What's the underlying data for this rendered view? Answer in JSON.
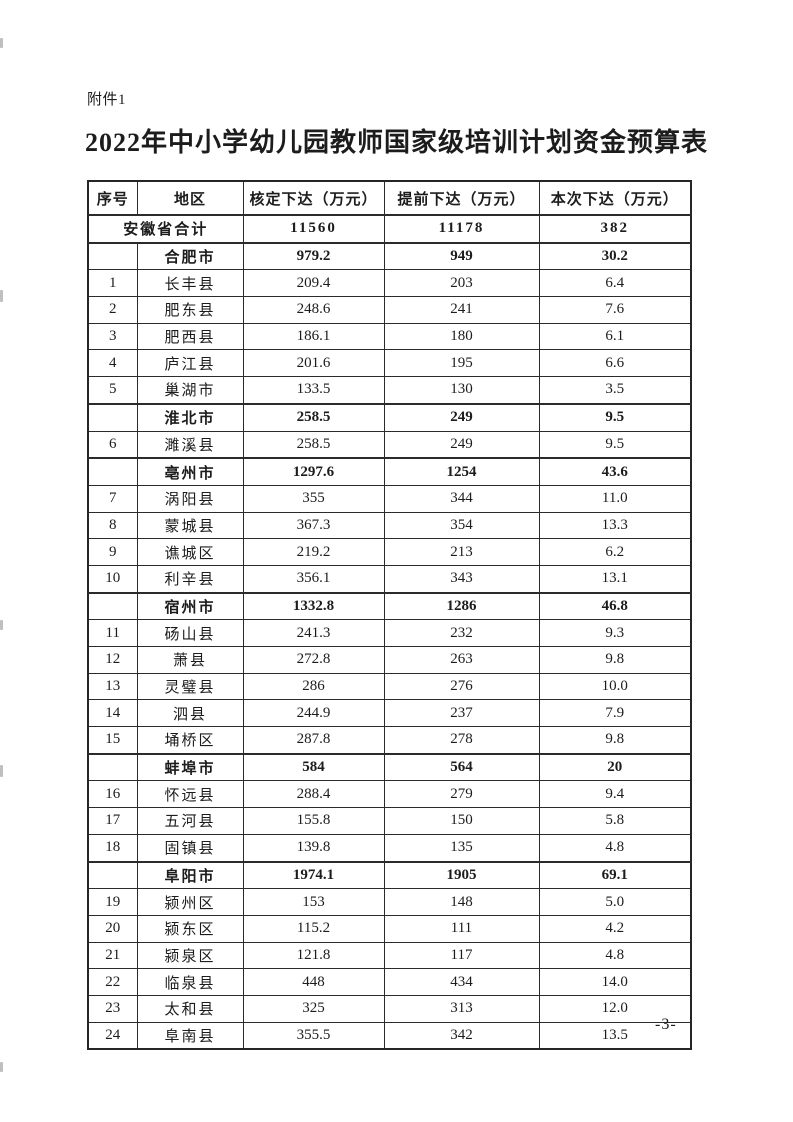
{
  "page": {
    "attachment_label": "附件1",
    "title": "2022年中小学幼儿园教师国家级培训计划资金预算表",
    "page_number": "-3-"
  },
  "table": {
    "headers": [
      "序号",
      "地区",
      "核定下达（万元）",
      "提前下达（万元）",
      "本次下达（万元）"
    ],
    "rows": [
      {
        "type": "province",
        "no": "",
        "region": "安徽省合计",
        "values": [
          "11560",
          "11178",
          "382"
        ]
      },
      {
        "type": "city",
        "no": "",
        "region": "合肥市",
        "values": [
          "979.2",
          "949",
          "30.2"
        ]
      },
      {
        "type": "county",
        "no": "1",
        "region": "长丰县",
        "values": [
          "209.4",
          "203",
          "6.4"
        ]
      },
      {
        "type": "county",
        "no": "2",
        "region": "肥东县",
        "values": [
          "248.6",
          "241",
          "7.6"
        ]
      },
      {
        "type": "county",
        "no": "3",
        "region": "肥西县",
        "values": [
          "186.1",
          "180",
          "6.1"
        ]
      },
      {
        "type": "county",
        "no": "4",
        "region": "庐江县",
        "values": [
          "201.6",
          "195",
          "6.6"
        ]
      },
      {
        "type": "county",
        "no": "5",
        "region": "巢湖市",
        "values": [
          "133.5",
          "130",
          "3.5"
        ]
      },
      {
        "type": "city",
        "no": "",
        "region": "淮北市",
        "values": [
          "258.5",
          "249",
          "9.5"
        ]
      },
      {
        "type": "county",
        "no": "6",
        "region": "濉溪县",
        "values": [
          "258.5",
          "249",
          "9.5"
        ]
      },
      {
        "type": "city",
        "no": "",
        "region": "亳州市",
        "values": [
          "1297.6",
          "1254",
          "43.6"
        ]
      },
      {
        "type": "county",
        "no": "7",
        "region": "涡阳县",
        "values": [
          "355",
          "344",
          "11.0"
        ]
      },
      {
        "type": "county",
        "no": "8",
        "region": "蒙城县",
        "values": [
          "367.3",
          "354",
          "13.3"
        ]
      },
      {
        "type": "county",
        "no": "9",
        "region": "谯城区",
        "values": [
          "219.2",
          "213",
          "6.2"
        ]
      },
      {
        "type": "county",
        "no": "10",
        "region": "利辛县",
        "values": [
          "356.1",
          "343",
          "13.1"
        ]
      },
      {
        "type": "city",
        "no": "",
        "region": "宿州市",
        "values": [
          "1332.8",
          "1286",
          "46.8"
        ]
      },
      {
        "type": "county",
        "no": "11",
        "region": "砀山县",
        "values": [
          "241.3",
          "232",
          "9.3"
        ]
      },
      {
        "type": "county",
        "no": "12",
        "region": "萧县",
        "values": [
          "272.8",
          "263",
          "9.8"
        ]
      },
      {
        "type": "county",
        "no": "13",
        "region": "灵璧县",
        "values": [
          "286",
          "276",
          "10.0"
        ]
      },
      {
        "type": "county",
        "no": "14",
        "region": "泗县",
        "values": [
          "244.9",
          "237",
          "7.9"
        ]
      },
      {
        "type": "county",
        "no": "15",
        "region": "埇桥区",
        "values": [
          "287.8",
          "278",
          "9.8"
        ]
      },
      {
        "type": "city",
        "no": "",
        "region": "蚌埠市",
        "values": [
          "584",
          "564",
          "20"
        ]
      },
      {
        "type": "county",
        "no": "16",
        "region": "怀远县",
        "values": [
          "288.4",
          "279",
          "9.4"
        ]
      },
      {
        "type": "county",
        "no": "17",
        "region": "五河县",
        "values": [
          "155.8",
          "150",
          "5.8"
        ]
      },
      {
        "type": "county",
        "no": "18",
        "region": "固镇县",
        "values": [
          "139.8",
          "135",
          "4.8"
        ]
      },
      {
        "type": "city",
        "no": "",
        "region": "阜阳市",
        "values": [
          "1974.1",
          "1905",
          "69.1"
        ]
      },
      {
        "type": "county",
        "no": "19",
        "region": "颍州区",
        "values": [
          "153",
          "148",
          "5.0"
        ]
      },
      {
        "type": "county",
        "no": "20",
        "region": "颍东区",
        "values": [
          "115.2",
          "111",
          "4.2"
        ]
      },
      {
        "type": "county",
        "no": "21",
        "region": "颍泉区",
        "values": [
          "121.8",
          "117",
          "4.8"
        ]
      },
      {
        "type": "county",
        "no": "22",
        "region": "临泉县",
        "values": [
          "448",
          "434",
          "14.0"
        ]
      },
      {
        "type": "county",
        "no": "23",
        "region": "太和县",
        "values": [
          "325",
          "313",
          "12.0"
        ]
      },
      {
        "type": "county",
        "no": "24",
        "region": "阜南县",
        "values": [
          "355.5",
          "342",
          "13.5"
        ]
      }
    ]
  }
}
